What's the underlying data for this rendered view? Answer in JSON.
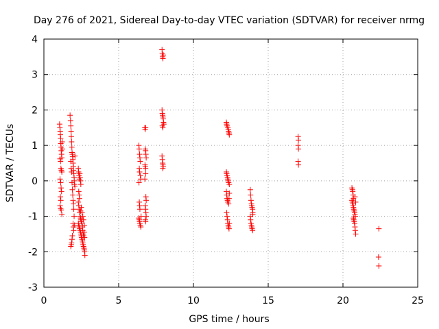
{
  "chart_data": {
    "type": "scatter",
    "title": "Day 276 of 2021, Sidereal Day-to-day VTEC variation (SDTVAR) for receiver nrmg",
    "xlabel": "GPS time / hours",
    "ylabel": "SDTVAR / TECUs",
    "xlim": [
      0,
      25
    ],
    "ylim": [
      -3,
      4
    ],
    "xticks": [
      0,
      5,
      10,
      15,
      20,
      25
    ],
    "yticks": [
      -3,
      -2,
      -1,
      0,
      1,
      2,
      3,
      4
    ],
    "grid": true,
    "marker": "+",
    "color": "#ff0000",
    "series": [
      {
        "name": "nrmg",
        "points": [
          [
            1.05,
            1.6
          ],
          [
            1.07,
            1.5
          ],
          [
            1.09,
            1.4
          ],
          [
            1.1,
            1.3
          ],
          [
            1.12,
            1.2
          ],
          [
            1.13,
            1.05
          ],
          [
            1.15,
            0.95
          ],
          [
            1.16,
            0.85
          ],
          [
            1.18,
            0.75
          ],
          [
            1.2,
            0.65
          ],
          [
            1.08,
            0.62
          ],
          [
            1.11,
            0.55
          ],
          [
            1.14,
            0.35
          ],
          [
            1.17,
            0.3
          ],
          [
            1.2,
            0.25
          ],
          [
            1.08,
            0.05
          ],
          [
            1.12,
            -0.05
          ],
          [
            1.15,
            -0.2
          ],
          [
            1.18,
            -0.3
          ],
          [
            1.1,
            -0.45
          ],
          [
            1.13,
            -0.55
          ],
          [
            1.08,
            -0.7
          ],
          [
            1.12,
            -0.78
          ],
          [
            1.16,
            -0.82
          ],
          [
            1.2,
            -0.95
          ],
          [
            1.22,
            1.1
          ],
          [
            1.24,
            0.9
          ],
          [
            1.75,
            1.85
          ],
          [
            1.78,
            1.7
          ],
          [
            1.8,
            1.55
          ],
          [
            1.82,
            1.4
          ],
          [
            1.83,
            1.25
          ],
          [
            1.85,
            1.1
          ],
          [
            1.87,
            0.95
          ],
          [
            1.88,
            0.8
          ],
          [
            1.9,
            0.75
          ],
          [
            1.92,
            0.68
          ],
          [
            1.94,
            0.6
          ],
          [
            1.95,
            0.5
          ],
          [
            1.97,
            0.4
          ],
          [
            1.98,
            0.3
          ],
          [
            2.0,
            0.2
          ],
          [
            2.02,
            0.1
          ],
          [
            2.03,
            0.0
          ],
          [
            2.05,
            -0.1
          ],
          [
            2.07,
            -0.15
          ],
          [
            1.8,
            0.55
          ],
          [
            1.82,
            0.35
          ],
          [
            1.85,
            0.25
          ],
          [
            1.88,
            -0.05
          ],
          [
            1.9,
            -0.25
          ],
          [
            1.93,
            -0.4
          ],
          [
            1.95,
            -0.55
          ],
          [
            1.98,
            -0.65
          ],
          [
            2.0,
            -0.8
          ],
          [
            2.02,
            -1.0
          ],
          [
            1.95,
            -1.2
          ],
          [
            1.97,
            -1.3
          ],
          [
            1.99,
            -1.4
          ],
          [
            1.9,
            -1.55
          ],
          [
            1.88,
            -1.65
          ],
          [
            1.85,
            -1.75
          ],
          [
            1.83,
            -1.8
          ],
          [
            1.8,
            -1.85
          ],
          [
            2.05,
            -1.25
          ],
          [
            2.08,
            0.7
          ],
          [
            2.3,
            0.35
          ],
          [
            2.32,
            0.25
          ],
          [
            2.35,
            0.15
          ],
          [
            2.37,
            0.05
          ],
          [
            2.4,
            0.2
          ],
          [
            2.42,
            0.1
          ],
          [
            2.45,
            0.0
          ],
          [
            2.47,
            -0.1
          ],
          [
            2.33,
            -0.3
          ],
          [
            2.36,
            -0.4
          ],
          [
            2.38,
            -0.5
          ],
          [
            2.3,
            -0.6
          ],
          [
            2.33,
            -0.7
          ],
          [
            2.36,
            -0.8
          ],
          [
            2.39,
            -0.9
          ],
          [
            2.42,
            -1.0
          ],
          [
            2.45,
            -1.05
          ],
          [
            2.48,
            -1.1
          ],
          [
            2.5,
            -1.15
          ],
          [
            2.3,
            -1.2
          ],
          [
            2.33,
            -1.25
          ],
          [
            2.36,
            -1.3
          ],
          [
            2.39,
            -1.35
          ],
          [
            2.42,
            -1.4
          ],
          [
            2.45,
            -1.45
          ],
          [
            2.48,
            -1.5
          ],
          [
            2.5,
            -1.55
          ],
          [
            2.52,
            -1.6
          ],
          [
            2.55,
            -1.65
          ],
          [
            2.58,
            -1.7
          ],
          [
            2.6,
            -1.75
          ],
          [
            2.62,
            -1.8
          ],
          [
            2.65,
            -1.85
          ],
          [
            2.68,
            -1.9
          ],
          [
            2.7,
            -1.95
          ],
          [
            2.72,
            -2.0
          ],
          [
            2.74,
            -2.1
          ],
          [
            2.55,
            -1.2
          ],
          [
            2.58,
            -1.3
          ],
          [
            2.6,
            -1.4
          ],
          [
            2.63,
            -1.5
          ],
          [
            2.65,
            -1.55
          ],
          [
            2.55,
            -0.9
          ],
          [
            2.6,
            -1.0
          ],
          [
            2.65,
            -1.1
          ],
          [
            2.7,
            -1.25
          ],
          [
            2.7,
            -1.45
          ],
          [
            2.72,
            -1.6
          ],
          [
            2.5,
            -0.75
          ],
          [
            2.45,
            -0.85
          ],
          [
            6.35,
            1.0
          ],
          [
            6.37,
            0.9
          ],
          [
            6.4,
            0.75
          ],
          [
            6.42,
            0.65
          ],
          [
            6.44,
            0.55
          ],
          [
            6.38,
            0.35
          ],
          [
            6.4,
            0.25
          ],
          [
            6.45,
            0.15
          ],
          [
            6.48,
            0.05
          ],
          [
            6.36,
            -0.05
          ],
          [
            6.38,
            -0.6
          ],
          [
            6.4,
            -0.7
          ],
          [
            6.42,
            -0.8
          ],
          [
            6.35,
            -1.05
          ],
          [
            6.38,
            -1.1
          ],
          [
            6.4,
            -1.15
          ],
          [
            6.42,
            -1.2
          ],
          [
            6.45,
            -1.25
          ],
          [
            6.48,
            -1.3
          ],
          [
            6.5,
            -1.0
          ],
          [
            6.75,
            1.5
          ],
          [
            6.77,
            1.45
          ],
          [
            6.8,
            1.5
          ],
          [
            6.78,
            0.9
          ],
          [
            6.8,
            0.85
          ],
          [
            6.82,
            0.75
          ],
          [
            6.84,
            0.65
          ],
          [
            6.76,
            0.45
          ],
          [
            6.78,
            0.4
          ],
          [
            6.8,
            0.35
          ],
          [
            6.82,
            -0.45
          ],
          [
            6.84,
            -0.55
          ],
          [
            6.78,
            -0.7
          ],
          [
            6.8,
            -0.8
          ],
          [
            6.82,
            -0.9
          ],
          [
            6.84,
            -1.0
          ],
          [
            6.78,
            -1.1
          ],
          [
            6.8,
            -1.15
          ],
          [
            6.75,
            0.05
          ],
          [
            6.8,
            0.2
          ],
          [
            7.9,
            3.7
          ],
          [
            7.92,
            3.6
          ],
          [
            7.94,
            3.5
          ],
          [
            7.96,
            3.45
          ],
          [
            7.98,
            3.55
          ],
          [
            7.9,
            2.0
          ],
          [
            7.92,
            1.9
          ],
          [
            7.94,
            1.85
          ],
          [
            7.96,
            1.8
          ],
          [
            7.98,
            1.75
          ],
          [
            8.0,
            1.65
          ],
          [
            8.02,
            1.6
          ],
          [
            7.92,
            1.55
          ],
          [
            7.95,
            1.5
          ],
          [
            7.9,
            0.7
          ],
          [
            7.92,
            0.6
          ],
          [
            7.94,
            0.5
          ],
          [
            7.96,
            0.45
          ],
          [
            7.98,
            0.4
          ],
          [
            7.95,
            0.35
          ],
          [
            12.2,
            1.65
          ],
          [
            12.22,
            1.6
          ],
          [
            12.25,
            1.55
          ],
          [
            12.3,
            1.5
          ],
          [
            12.33,
            1.45
          ],
          [
            12.35,
            1.4
          ],
          [
            12.38,
            1.35
          ],
          [
            12.4,
            1.3
          ],
          [
            12.2,
            0.25
          ],
          [
            12.22,
            0.2
          ],
          [
            12.25,
            0.15
          ],
          [
            12.28,
            0.1
          ],
          [
            12.3,
            0.05
          ],
          [
            12.33,
            0.0
          ],
          [
            12.35,
            -0.05
          ],
          [
            12.4,
            -0.1
          ],
          [
            12.2,
            -0.3
          ],
          [
            12.22,
            -0.4
          ],
          [
            12.25,
            -0.5
          ],
          [
            12.28,
            -0.55
          ],
          [
            12.3,
            -0.6
          ],
          [
            12.35,
            -0.65
          ],
          [
            12.38,
            -0.5
          ],
          [
            12.4,
            -0.35
          ],
          [
            12.22,
            -0.9
          ],
          [
            12.25,
            -1.0
          ],
          [
            12.28,
            -1.1
          ],
          [
            12.3,
            -1.2
          ],
          [
            12.33,
            -1.25
          ],
          [
            12.35,
            -1.3
          ],
          [
            12.38,
            -1.35
          ],
          [
            12.4,
            -1.2
          ],
          [
            13.8,
            -0.25
          ],
          [
            13.82,
            -0.4
          ],
          [
            13.85,
            -0.55
          ],
          [
            13.88,
            -0.65
          ],
          [
            13.9,
            -0.7
          ],
          [
            13.92,
            -0.75
          ],
          [
            13.95,
            -0.8
          ],
          [
            13.97,
            -0.9
          ],
          [
            13.8,
            -1.0
          ],
          [
            13.82,
            -1.1
          ],
          [
            13.85,
            -1.2
          ],
          [
            13.88,
            -1.25
          ],
          [
            13.9,
            -1.3
          ],
          [
            13.92,
            -1.35
          ],
          [
            13.95,
            -1.4
          ],
          [
            13.97,
            -0.95
          ],
          [
            17.0,
            1.25
          ],
          [
            17.02,
            1.15
          ],
          [
            17.0,
            1.0
          ],
          [
            17.02,
            0.9
          ],
          [
            17.0,
            0.55
          ],
          [
            17.02,
            0.45
          ],
          [
            20.6,
            -0.2
          ],
          [
            20.63,
            -0.25
          ],
          [
            20.65,
            -0.3
          ],
          [
            20.68,
            -0.4
          ],
          [
            20.7,
            -0.5
          ],
          [
            20.6,
            -0.55
          ],
          [
            20.63,
            -0.6
          ],
          [
            20.65,
            -0.65
          ],
          [
            20.68,
            -0.7
          ],
          [
            20.7,
            -0.75
          ],
          [
            20.72,
            -0.8
          ],
          [
            20.75,
            -0.85
          ],
          [
            20.78,
            -0.9
          ],
          [
            20.8,
            -0.95
          ],
          [
            20.82,
            -1.0
          ],
          [
            20.7,
            -1.05
          ],
          [
            20.72,
            -1.1
          ],
          [
            20.75,
            -1.15
          ],
          [
            20.78,
            -1.2
          ],
          [
            20.8,
            -1.3
          ],
          [
            20.82,
            -1.4
          ],
          [
            20.85,
            -1.5
          ],
          [
            20.85,
            -0.6
          ],
          [
            20.8,
            -0.45
          ],
          [
            22.4,
            -1.35
          ],
          [
            22.38,
            -2.15
          ],
          [
            22.4,
            -2.4
          ]
        ]
      }
    ]
  }
}
